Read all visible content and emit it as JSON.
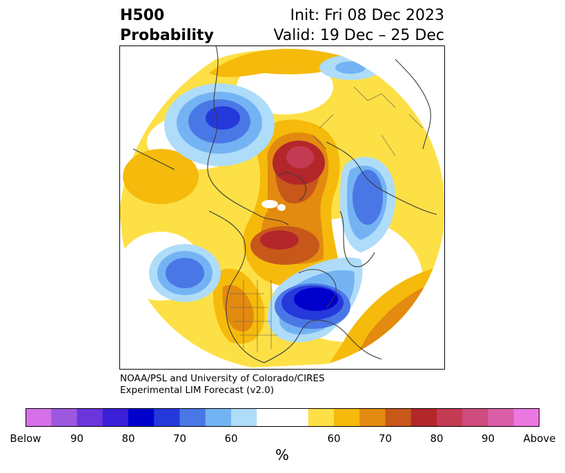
{
  "title": {
    "left_line1": "H500",
    "left_line2": "Probability",
    "right_line1": "Init: Fri 08 Dec 2023",
    "right_line2": "Valid: 19 Dec – 25 Dec"
  },
  "credit": {
    "line1": "NOAA/PSL and University of Colorado/CIRES",
    "line2": "Experimental LIM Forecast (v2.0)"
  },
  "colorbar": {
    "colors": [
      "#d670e8",
      "#9d58e0",
      "#6a35db",
      "#3b1fd7",
      "#0000cc",
      "#2539db",
      "#4a77e6",
      "#74b3f3",
      "#aedcf9",
      "#ffffff",
      "#ffffff",
      "#fde046",
      "#f5ba0b",
      "#e38a10",
      "#c8571a",
      "#b3262a",
      "#c43a53",
      "#cf4c7e",
      "#da5fa8",
      "#ea78e0"
    ],
    "tick_labels": [
      "Below",
      "90",
      "80",
      "70",
      "60",
      "60",
      "70",
      "80",
      "90",
      "Above"
    ],
    "unit": "%"
  },
  "map": {
    "projection": "north-polar-stereographic",
    "features": [
      "continent-outlines",
      "country-borders",
      "state-borders",
      "probability-shading"
    ]
  }
}
